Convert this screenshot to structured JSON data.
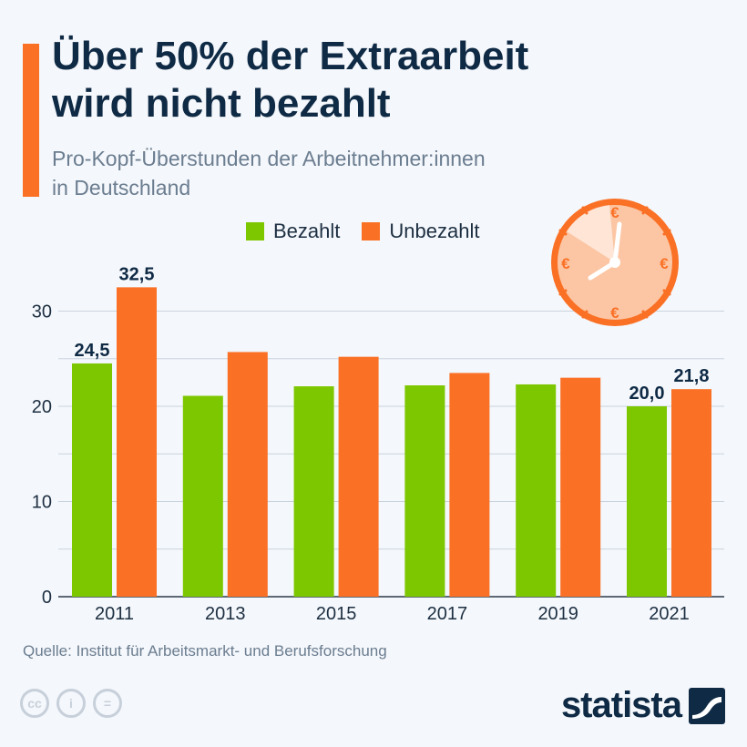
{
  "header": {
    "title_line1": "Über 50% der Extraarbeit",
    "title_line2": "wird nicht bezahlt",
    "subtitle_line1": "Pro-Kopf-Überstunden der Arbeitnehmer:innen",
    "subtitle_line2": "in Deutschland"
  },
  "legend": {
    "paid_label": "Bezahlt",
    "unpaid_label": "Unbezahlt"
  },
  "colors": {
    "paid": "#7dc700",
    "unpaid": "#fa7025",
    "accent": "#fa7025",
    "text_dark": "#0f2a45",
    "grid": "#c9d3de"
  },
  "clock_icon": "clock-with-euro-signs-icon",
  "chart_data": {
    "type": "bar",
    "categories": [
      "2011",
      "2013",
      "2015",
      "2017",
      "2019",
      "2021"
    ],
    "series": [
      {
        "name": "Bezahlt",
        "values": [
          24.5,
          21.1,
          22.1,
          22.2,
          22.3,
          20.0
        ]
      },
      {
        "name": "Unbezahlt",
        "values": [
          32.5,
          25.7,
          25.2,
          23.5,
          23.0,
          21.8
        ]
      }
    ],
    "data_labels": [
      {
        "series": 0,
        "index": 0,
        "text": "24,5"
      },
      {
        "series": 1,
        "index": 0,
        "text": "32,5"
      },
      {
        "series": 0,
        "index": 5,
        "text": "20,0"
      },
      {
        "series": 1,
        "index": 5,
        "text": "21,8"
      }
    ],
    "yticks": [
      0,
      10,
      20,
      30
    ],
    "ylim": [
      0,
      35
    ],
    "grid": true,
    "legend_position": "top"
  },
  "footer": {
    "source": "Quelle: Institut für Arbeitsmarkt- und Berufsforschung",
    "brand": "statista",
    "cc_icons": [
      "cc-icon",
      "attribution-icon",
      "no-derivatives-icon"
    ],
    "cc_glyphs": [
      "cc",
      "i",
      "="
    ]
  }
}
